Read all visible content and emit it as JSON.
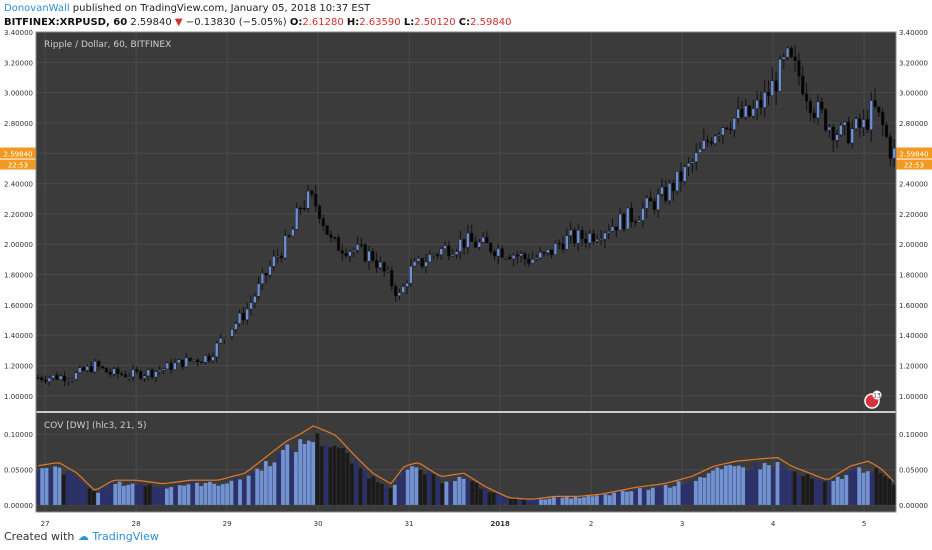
{
  "header": {
    "author": "DonovanWall",
    "published_text": "published on TradingView.com, January 05, 2018 10:37 EST",
    "symbol": "BITFINEX:XRPUSD, 60",
    "last": "2.59840",
    "change": "−0.13830 (−5.05%)",
    "o_label": "O:",
    "o": "2.61280",
    "h_label": "H:",
    "h": "2.63590",
    "l_label": "L:",
    "l": "2.50120",
    "c_label": "C:",
    "c": "2.59840"
  },
  "footer": {
    "created_with": "Created with",
    "brand": "TradingView"
  },
  "colors": {
    "background": "#3b3b3b",
    "candle_up": "#6f8fd8",
    "candle_down": "#050505",
    "cov_line": "#e07a2e",
    "price_tag": "#f29a1f",
    "badge": "#d9323a"
  },
  "chart_data": [
    {
      "type": "candlestick",
      "title": "Ripple / Dollar, 60, BITFINEX",
      "xlabel": "",
      "ylabel": "",
      "ylim": [
        0.9,
        3.4
      ],
      "y_ticks": [
        "3.40000",
        "3.20000",
        "3.00000",
        "2.80000",
        "2.60000",
        "2.40000",
        "2.20000",
        "2.00000",
        "1.80000",
        "1.60000",
        "1.40000",
        "1.20000",
        "1.00000"
      ],
      "x_ticks": [
        "27",
        "28",
        "29",
        "30",
        "31",
        "2018",
        "2",
        "3",
        "4",
        "5"
      ],
      "x_tick_pos": [
        0,
        1,
        2,
        3,
        4,
        5,
        6,
        7,
        8,
        9
      ],
      "x_range": [
        -0.1,
        9.35
      ],
      "last_price_tag": "2.59840",
      "time_to_close": "22:53",
      "badge": "13",
      "grid": true,
      "close_anchors": [
        [
          -0.1,
          1.12
        ],
        [
          0.3,
          1.13
        ],
        [
          0.55,
          1.2
        ],
        [
          0.7,
          1.15
        ],
        [
          0.95,
          1.14
        ],
        [
          1.2,
          1.16
        ],
        [
          1.5,
          1.22
        ],
        [
          1.8,
          1.26
        ],
        [
          2.0,
          1.42
        ],
        [
          2.2,
          1.55
        ],
        [
          2.5,
          1.88
        ],
        [
          2.7,
          2.05
        ],
        [
          2.8,
          2.25
        ],
        [
          2.9,
          2.3
        ],
        [
          3.0,
          2.25
        ],
        [
          3.15,
          2.0
        ],
        [
          3.3,
          1.98
        ],
        [
          3.6,
          1.92
        ],
        [
          3.8,
          1.75
        ],
        [
          3.9,
          1.65
        ],
        [
          4.0,
          1.82
        ],
        [
          4.3,
          1.95
        ],
        [
          4.6,
          2.02
        ],
        [
          4.9,
          1.98
        ],
        [
          5.1,
          1.95
        ],
        [
          5.3,
          1.9
        ],
        [
          5.5,
          1.92
        ],
        [
          5.7,
          2.03
        ],
        [
          5.95,
          2.05
        ],
        [
          6.2,
          2.12
        ],
        [
          6.5,
          2.2
        ],
        [
          6.8,
          2.32
        ],
        [
          7.0,
          2.45
        ],
        [
          7.2,
          2.6
        ],
        [
          7.35,
          2.75
        ],
        [
          7.5,
          2.82
        ],
        [
          7.75,
          2.85
        ],
        [
          7.9,
          2.95
        ],
        [
          8.05,
          3.1
        ],
        [
          8.15,
          3.22
        ],
        [
          8.3,
          3.1
        ],
        [
          8.45,
          2.9
        ],
        [
          8.6,
          2.8
        ],
        [
          8.75,
          2.72
        ],
        [
          9.0,
          2.78
        ],
        [
          9.1,
          2.9
        ],
        [
          9.2,
          2.78
        ],
        [
          9.3,
          2.6
        ],
        [
          9.35,
          2.6
        ]
      ]
    },
    {
      "type": "bar",
      "title": "COV [DW] (hlc3, 21, 5)",
      "xlabel": "",
      "ylabel": "",
      "ylim": [
        -0.01,
        0.13
      ],
      "y_ticks": [
        "0.10000",
        "0.05000",
        "0.00000"
      ],
      "series": [
        {
          "line_anchors": [
            [
              -0.1,
              0.055
            ],
            [
              0.15,
              0.06
            ],
            [
              0.35,
              0.045
            ],
            [
              0.55,
              0.02
            ],
            [
              0.75,
              0.035
            ],
            [
              1.0,
              0.035
            ],
            [
              1.3,
              0.03
            ],
            [
              1.6,
              0.035
            ],
            [
              1.9,
              0.035
            ],
            [
              2.2,
              0.045
            ],
            [
              2.45,
              0.07
            ],
            [
              2.65,
              0.09
            ],
            [
              2.8,
              0.1
            ],
            [
              2.95,
              0.112
            ],
            [
              3.2,
              0.098
            ],
            [
              3.4,
              0.07
            ],
            [
              3.6,
              0.045
            ],
            [
              3.8,
              0.03
            ],
            [
              3.95,
              0.055
            ],
            [
              4.1,
              0.06
            ],
            [
              4.35,
              0.04
            ],
            [
              4.6,
              0.045
            ],
            [
              4.85,
              0.025
            ],
            [
              5.1,
              0.01
            ],
            [
              5.35,
              0.008
            ],
            [
              5.6,
              0.012
            ],
            [
              5.85,
              0.012
            ],
            [
              6.1,
              0.015
            ],
            [
              6.5,
              0.025
            ],
            [
              6.8,
              0.03
            ],
            [
              7.1,
              0.04
            ],
            [
              7.35,
              0.055
            ],
            [
              7.6,
              0.062
            ],
            [
              7.85,
              0.065
            ],
            [
              8.05,
              0.067
            ],
            [
              8.2,
              0.055
            ],
            [
              8.4,
              0.045
            ],
            [
              8.6,
              0.035
            ],
            [
              8.85,
              0.055
            ],
            [
              9.05,
              0.062
            ],
            [
              9.2,
              0.05
            ],
            [
              9.35,
              0.03
            ]
          ]
        }
      ]
    }
  ]
}
